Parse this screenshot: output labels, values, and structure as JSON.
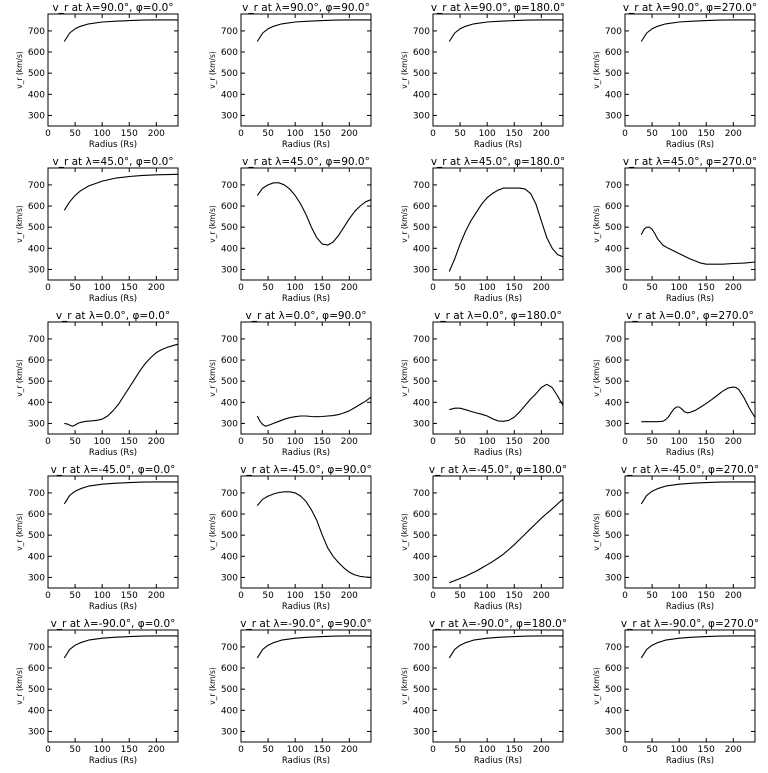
{
  "figure": {
    "panels": [
      {
        "title": "v_r at λ=90.0°, φ=0.0°"
      },
      {
        "title": "v_r at λ=90.0°, φ=90.0°"
      },
      {
        "title": "v_r at λ=90.0°, φ=180.0°"
      },
      {
        "title": "v_r at λ=90.0°, φ=270.0°"
      },
      {
        "title": "v_r at λ=45.0°, φ=0.0°"
      },
      {
        "title": "v_r at λ=45.0°, φ=90.0°"
      },
      {
        "title": "v_r at λ=45.0°, φ=180.0°"
      },
      {
        "title": "v_r at λ=45.0°, φ=270.0°"
      },
      {
        "title": "v_r at λ=0.0°, φ=0.0°"
      },
      {
        "title": "v_r at λ=0.0°, φ=90.0°"
      },
      {
        "title": "v_r at λ=0.0°, φ=180.0°"
      },
      {
        "title": "v_r at λ=0.0°, φ=270.0°"
      },
      {
        "title": "v_r at λ=-45.0°, φ=0.0°"
      },
      {
        "title": "v_r at λ=-45.0°, φ=90.0°"
      },
      {
        "title": "v_r at λ=-45.0°, φ=180.0°"
      },
      {
        "title": "v_r at λ=-45.0°, φ=270.0°"
      },
      {
        "title": "v_r at λ=-90.0°, φ=0.0°"
      },
      {
        "title": "v_r at λ=-90.0°, φ=90.0°"
      },
      {
        "title": "v_r at λ=-90.0°, φ=180.0°"
      },
      {
        "title": "v_r at λ=-90.0°, φ=270.0°"
      }
    ]
  },
  "chart_data": [
    {
      "type": "line",
      "title": "v_r at λ=90.0°, φ=0.0°",
      "xlabel": "Radius (Rs)",
      "ylabel": "v_r (km/s)",
      "xlim": [
        0,
        240
      ],
      "ylim": [
        250,
        780
      ],
      "xticks": [
        0,
        50,
        100,
        150,
        200
      ],
      "yticks": [
        300,
        400,
        500,
        600,
        700
      ],
      "x": [
        30,
        40,
        50,
        60,
        75,
        100,
        125,
        150,
        175,
        200,
        240
      ],
      "y": [
        650,
        690,
        710,
        722,
        733,
        742,
        746,
        749,
        751,
        752,
        752
      ]
    },
    {
      "type": "line",
      "title": "v_r at λ=90.0°, φ=90.0°",
      "xlabel": "Radius (Rs)",
      "ylabel": "v_r (km/s)",
      "xlim": [
        0,
        240
      ],
      "ylim": [
        250,
        780
      ],
      "xticks": [
        0,
        50,
        100,
        150,
        200
      ],
      "yticks": [
        300,
        400,
        500,
        600,
        700
      ],
      "x": [
        30,
        40,
        50,
        60,
        75,
        100,
        125,
        150,
        175,
        200,
        240
      ],
      "y": [
        650,
        690,
        710,
        722,
        733,
        742,
        746,
        749,
        751,
        752,
        752
      ]
    },
    {
      "type": "line",
      "title": "v_r at λ=90.0°, φ=180.0°",
      "xlabel": "Radius (Rs)",
      "ylabel": "v_r (km/s)",
      "xlim": [
        0,
        240
      ],
      "ylim": [
        250,
        780
      ],
      "xticks": [
        0,
        50,
        100,
        150,
        200
      ],
      "yticks": [
        300,
        400,
        500,
        600,
        700
      ],
      "x": [
        30,
        40,
        50,
        60,
        75,
        100,
        125,
        150,
        175,
        200,
        240
      ],
      "y": [
        650,
        690,
        710,
        722,
        733,
        742,
        746,
        749,
        751,
        752,
        752
      ]
    },
    {
      "type": "line",
      "title": "v_r at λ=90.0°, φ=270.0°",
      "xlabel": "Radius (Rs)",
      "ylabel": "v_r (km/s)",
      "xlim": [
        0,
        240
      ],
      "ylim": [
        250,
        780
      ],
      "xticks": [
        0,
        50,
        100,
        150,
        200
      ],
      "yticks": [
        300,
        400,
        500,
        600,
        700
      ],
      "x": [
        30,
        40,
        50,
        60,
        75,
        100,
        125,
        150,
        175,
        200,
        240
      ],
      "y": [
        650,
        690,
        710,
        722,
        733,
        742,
        746,
        749,
        751,
        752,
        752
      ]
    },
    {
      "type": "line",
      "title": "v_r at λ=45.0°, φ=0.0°",
      "xlabel": "Radius (Rs)",
      "ylabel": "v_r (km/s)",
      "xlim": [
        0,
        240
      ],
      "ylim": [
        250,
        780
      ],
      "xticks": [
        0,
        50,
        100,
        150,
        200
      ],
      "yticks": [
        300,
        400,
        500,
        600,
        700
      ],
      "x": [
        30,
        40,
        50,
        60,
        75,
        100,
        125,
        150,
        175,
        200,
        240
      ],
      "y": [
        580,
        620,
        650,
        672,
        695,
        718,
        732,
        740,
        745,
        748,
        750
      ]
    },
    {
      "type": "line",
      "title": "v_r at λ=45.0°, φ=90.0°",
      "xlabel": "Radius (Rs)",
      "ylabel": "v_r (km/s)",
      "xlim": [
        0,
        240
      ],
      "ylim": [
        250,
        780
      ],
      "xticks": [
        0,
        50,
        100,
        150,
        200
      ],
      "yticks": [
        300,
        400,
        500,
        600,
        700
      ],
      "x": [
        30,
        40,
        50,
        60,
        70,
        80,
        90,
        100,
        110,
        120,
        130,
        140,
        150,
        160,
        170,
        180,
        190,
        200,
        210,
        220,
        230,
        240
      ],
      "y": [
        650,
        685,
        700,
        710,
        710,
        700,
        680,
        650,
        610,
        560,
        500,
        450,
        420,
        415,
        430,
        460,
        500,
        540,
        575,
        600,
        620,
        630
      ]
    },
    {
      "type": "line",
      "title": "v_r at λ=45.0°, φ=180.0°",
      "xlabel": "Radius (Rs)",
      "ylabel": "v_r (km/s)",
      "xlim": [
        0,
        240
      ],
      "ylim": [
        250,
        780
      ],
      "xticks": [
        0,
        50,
        100,
        150,
        200
      ],
      "yticks": [
        300,
        400,
        500,
        600,
        700
      ],
      "x": [
        30,
        40,
        50,
        60,
        70,
        80,
        90,
        100,
        110,
        120,
        130,
        140,
        150,
        160,
        170,
        180,
        190,
        200,
        210,
        220,
        230,
        240
      ],
      "y": [
        290,
        350,
        420,
        480,
        530,
        570,
        610,
        640,
        660,
        675,
        685,
        685,
        685,
        685,
        680,
        660,
        610,
        530,
        450,
        400,
        370,
        360
      ]
    },
    {
      "type": "line",
      "title": "v_r at λ=45.0°, φ=270.0°",
      "xlabel": "Radius (Rs)",
      "ylabel": "v_r (km/s)",
      "xlim": [
        0,
        240
      ],
      "ylim": [
        250,
        780
      ],
      "xticks": [
        0,
        50,
        100,
        150,
        200
      ],
      "yticks": [
        300,
        400,
        500,
        600,
        700
      ],
      "x": [
        30,
        35,
        40,
        45,
        50,
        55,
        60,
        70,
        80,
        100,
        120,
        140,
        150,
        160,
        180,
        200,
        220,
        240
      ],
      "y": [
        465,
        490,
        500,
        500,
        490,
        470,
        445,
        415,
        400,
        375,
        350,
        330,
        325,
        325,
        325,
        328,
        330,
        335
      ]
    },
    {
      "type": "line",
      "title": "v_r at λ=0.0°, φ=0.0°",
      "xlabel": "Radius (Rs)",
      "ylabel": "v_r (km/s)",
      "xlim": [
        0,
        240
      ],
      "ylim": [
        250,
        780
      ],
      "xticks": [
        0,
        50,
        100,
        150,
        200
      ],
      "yticks": [
        300,
        400,
        500,
        600,
        700
      ],
      "x": [
        30,
        35,
        40,
        45,
        50,
        55,
        60,
        70,
        80,
        90,
        100,
        110,
        120,
        130,
        140,
        150,
        160,
        170,
        180,
        190,
        200,
        210,
        220,
        230,
        240
      ],
      "y": [
        300,
        298,
        292,
        287,
        292,
        300,
        305,
        310,
        312,
        315,
        320,
        335,
        360,
        390,
        430,
        470,
        510,
        550,
        585,
        612,
        635,
        650,
        660,
        668,
        675
      ]
    },
    {
      "type": "line",
      "title": "v_r at λ=0.0°, φ=90.0°",
      "xlabel": "Radius (Rs)",
      "ylabel": "v_r (km/s)",
      "xlim": [
        0,
        240
      ],
      "ylim": [
        250,
        780
      ],
      "xticks": [
        0,
        50,
        100,
        150,
        200
      ],
      "yticks": [
        300,
        400,
        500,
        600,
        700
      ],
      "x": [
        30,
        35,
        40,
        45,
        50,
        60,
        70,
        80,
        90,
        100,
        110,
        120,
        130,
        140,
        150,
        160,
        170,
        180,
        190,
        200,
        210,
        220,
        230,
        240
      ],
      "y": [
        335,
        310,
        295,
        287,
        290,
        300,
        310,
        320,
        327,
        332,
        335,
        335,
        333,
        332,
        333,
        335,
        337,
        342,
        350,
        360,
        375,
        390,
        405,
        425
      ]
    },
    {
      "type": "line",
      "title": "v_r at λ=0.0°, φ=180.0°",
      "xlabel": "Radius (Rs)",
      "ylabel": "v_r (km/s)",
      "xlim": [
        0,
        240
      ],
      "ylim": [
        250,
        780
      ],
      "xticks": [
        0,
        50,
        100,
        150,
        200
      ],
      "yticks": [
        300,
        400,
        500,
        600,
        700
      ],
      "x": [
        30,
        40,
        50,
        60,
        70,
        80,
        90,
        100,
        110,
        120,
        130,
        140,
        150,
        160,
        170,
        180,
        190,
        200,
        210,
        220,
        230,
        240
      ],
      "y": [
        365,
        372,
        372,
        365,
        357,
        350,
        343,
        335,
        322,
        312,
        310,
        315,
        330,
        355,
        385,
        415,
        440,
        470,
        485,
        470,
        430,
        385
      ]
    },
    {
      "type": "line",
      "title": "v_r at λ=0.0°, φ=270.0°",
      "xlabel": "Radius (Rs)",
      "ylabel": "v_r (km/s)",
      "xlim": [
        0,
        240
      ],
      "ylim": [
        250,
        780
      ],
      "xticks": [
        0,
        50,
        100,
        150,
        200
      ],
      "yticks": [
        300,
        400,
        500,
        600,
        700
      ],
      "x": [
        30,
        40,
        50,
        60,
        70,
        75,
        80,
        85,
        90,
        95,
        100,
        105,
        110,
        115,
        120,
        130,
        140,
        150,
        160,
        170,
        180,
        190,
        200,
        205,
        210,
        220,
        230,
        240
      ],
      "y": [
        308,
        308,
        308,
        308,
        310,
        318,
        330,
        350,
        368,
        378,
        378,
        368,
        355,
        350,
        352,
        362,
        378,
        395,
        413,
        432,
        452,
        467,
        472,
        470,
        460,
        420,
        370,
        328
      ]
    },
    {
      "type": "line",
      "title": "v_r at λ=-45.0°, φ=0.0°",
      "xlabel": "Radius (Rs)",
      "ylabel": "v_r (km/s)",
      "xlim": [
        0,
        240
      ],
      "ylim": [
        250,
        780
      ],
      "xticks": [
        0,
        50,
        100,
        150,
        200
      ],
      "yticks": [
        300,
        400,
        500,
        600,
        700
      ],
      "x": [
        30,
        40,
        50,
        60,
        75,
        100,
        125,
        150,
        175,
        200,
        240
      ],
      "y": [
        648,
        688,
        708,
        720,
        732,
        741,
        746,
        749,
        751,
        752,
        752
      ]
    },
    {
      "type": "line",
      "title": "v_r at λ=-45.0°, φ=90.0°",
      "xlabel": "Radius (Rs)",
      "ylabel": "v_r (km/s)",
      "xlim": [
        0,
        240
      ],
      "ylim": [
        250,
        780
      ],
      "xticks": [
        0,
        50,
        100,
        150,
        200
      ],
      "yticks": [
        300,
        400,
        500,
        600,
        700
      ],
      "x": [
        30,
        40,
        50,
        60,
        70,
        80,
        90,
        100,
        110,
        120,
        130,
        140,
        150,
        160,
        170,
        180,
        190,
        200,
        210,
        220,
        230,
        240
      ],
      "y": [
        640,
        670,
        685,
        695,
        702,
        705,
        705,
        700,
        685,
        660,
        620,
        570,
        500,
        440,
        400,
        370,
        345,
        325,
        312,
        305,
        302,
        300
      ]
    },
    {
      "type": "line",
      "title": "v_r at λ=-45.0°, φ=180.0°",
      "xlabel": "Radius (Rs)",
      "ylabel": "v_r (km/s)",
      "xlim": [
        0,
        240
      ],
      "ylim": [
        250,
        780
      ],
      "xticks": [
        0,
        50,
        100,
        150,
        200
      ],
      "yticks": [
        300,
        400,
        500,
        600,
        700
      ],
      "x": [
        30,
        40,
        50,
        60,
        70,
        80,
        90,
        100,
        110,
        120,
        130,
        140,
        150,
        160,
        170,
        180,
        190,
        200,
        210,
        220,
        230,
        240
      ],
      "y": [
        275,
        285,
        295,
        305,
        318,
        330,
        345,
        360,
        375,
        392,
        410,
        432,
        455,
        480,
        505,
        530,
        555,
        580,
        603,
        625,
        648,
        670
      ]
    },
    {
      "type": "line",
      "title": "v_r at λ=-45.0°, φ=270.0°",
      "xlabel": "Radius (Rs)",
      "ylabel": "v_r (km/s)",
      "xlim": [
        0,
        240
      ],
      "ylim": [
        250,
        780
      ],
      "xticks": [
        0,
        50,
        100,
        150,
        200
      ],
      "yticks": [
        300,
        400,
        500,
        600,
        700
      ],
      "x": [
        30,
        40,
        50,
        60,
        75,
        100,
        125,
        150,
        175,
        200,
        240
      ],
      "y": [
        648,
        688,
        708,
        720,
        732,
        741,
        746,
        749,
        751,
        752,
        752
      ]
    },
    {
      "type": "line",
      "title": "v_r at λ=-90.0°, φ=0.0°",
      "xlabel": "Radius (Rs)",
      "ylabel": "v_r (km/s)",
      "xlim": [
        0,
        240
      ],
      "ylim": [
        250,
        780
      ],
      "xticks": [
        0,
        50,
        100,
        150,
        200
      ],
      "yticks": [
        300,
        400,
        500,
        600,
        700
      ],
      "x": [
        30,
        40,
        50,
        60,
        75,
        100,
        125,
        150,
        175,
        200,
        240
      ],
      "y": [
        648,
        688,
        708,
        720,
        732,
        741,
        746,
        749,
        751,
        752,
        752
      ]
    },
    {
      "type": "line",
      "title": "v_r at λ=-90.0°, φ=90.0°",
      "xlabel": "Radius (Rs)",
      "ylabel": "v_r (km/s)",
      "xlim": [
        0,
        240
      ],
      "ylim": [
        250,
        780
      ],
      "xticks": [
        0,
        50,
        100,
        150,
        200
      ],
      "yticks": [
        300,
        400,
        500,
        600,
        700
      ],
      "x": [
        30,
        40,
        50,
        60,
        75,
        100,
        125,
        150,
        175,
        200,
        240
      ],
      "y": [
        648,
        688,
        708,
        720,
        732,
        741,
        746,
        749,
        751,
        752,
        752
      ]
    },
    {
      "type": "line",
      "title": "v_r at λ=-90.0°, φ=180.0°",
      "xlabel": "Radius (Rs)",
      "ylabel": "v_r (km/s)",
      "xlim": [
        0,
        240
      ],
      "ylim": [
        250,
        780
      ],
      "xticks": [
        0,
        50,
        100,
        150,
        200
      ],
      "yticks": [
        300,
        400,
        500,
        600,
        700
      ],
      "x": [
        30,
        40,
        50,
        60,
        75,
        100,
        125,
        150,
        175,
        200,
        240
      ],
      "y": [
        648,
        688,
        708,
        720,
        732,
        741,
        746,
        749,
        751,
        752,
        752
      ]
    },
    {
      "type": "line",
      "title": "v_r at λ=-90.0°, φ=270.0°",
      "xlabel": "Radius (Rs)",
      "ylabel": "v_r (km/s)",
      "xlim": [
        0,
        240
      ],
      "ylim": [
        250,
        780
      ],
      "xticks": [
        0,
        50,
        100,
        150,
        200
      ],
      "yticks": [
        300,
        400,
        500,
        600,
        700
      ],
      "x": [
        30,
        40,
        50,
        60,
        75,
        100,
        125,
        150,
        175,
        200,
        240
      ],
      "y": [
        648,
        688,
        708,
        720,
        732,
        741,
        746,
        749,
        751,
        752,
        752
      ]
    }
  ]
}
